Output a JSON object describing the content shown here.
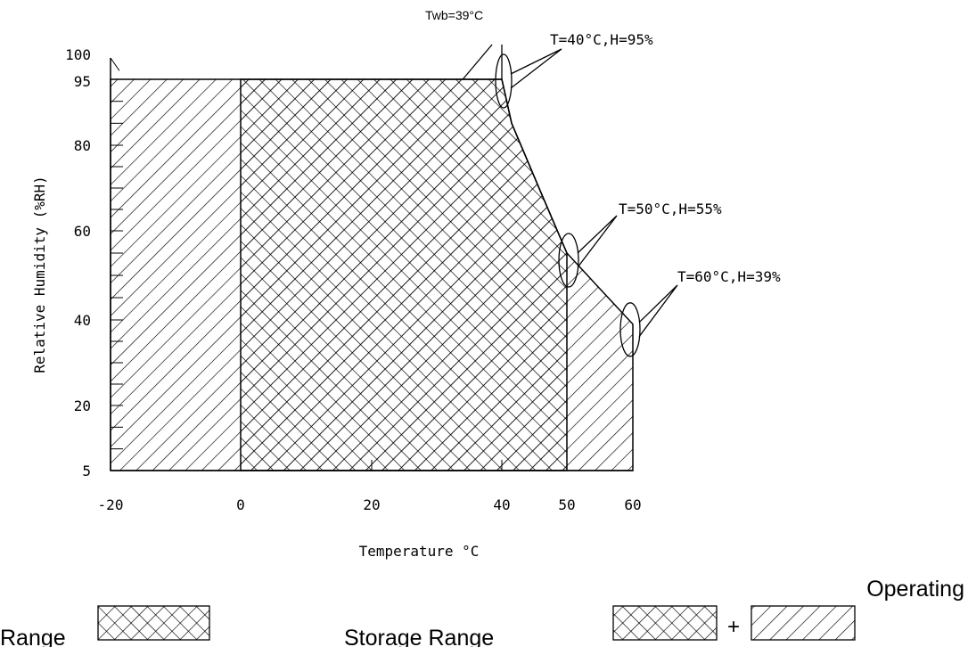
{
  "chart_data": {
    "type": "area",
    "xlabel": "Temperature °C",
    "ylabel": "Relative Humidity (%RH)",
    "xlim": [
      -20,
      60
    ],
    "ylim": [
      5,
      100
    ],
    "x_ticks": [
      "-20",
      "0",
      "20",
      "40",
      "50",
      "60"
    ],
    "x_tick_values": [
      -20,
      0,
      20,
      40,
      50,
      60
    ],
    "y_ticks": [
      "100",
      "95",
      "80",
      "60",
      "40",
      "20",
      "5"
    ],
    "y_tick_values": [
      100,
      95,
      80,
      60,
      40,
      20,
      5
    ],
    "operating_region": {
      "boundary": [
        {
          "t": 0,
          "h": 5
        },
        {
          "t": 0,
          "h": 95
        },
        {
          "t": 40,
          "h": 95
        },
        {
          "t": 41.5,
          "h": 85
        },
        {
          "t": 43.5,
          "h": 78
        },
        {
          "t": 46,
          "h": 69
        },
        {
          "t": 50,
          "h": 55
        },
        {
          "t": 50,
          "h": 5
        }
      ]
    },
    "storage_region": {
      "boundary": [
        {
          "t": -20,
          "h": 5
        },
        {
          "t": -20,
          "h": 95
        },
        {
          "t": 40,
          "h": 95
        },
        {
          "t": 41.5,
          "h": 85
        },
        {
          "t": 43.5,
          "h": 78
        },
        {
          "t": 46,
          "h": 69
        },
        {
          "t": 50,
          "h": 55
        },
        {
          "t": 55,
          "h": 47
        },
        {
          "t": 60,
          "h": 39
        },
        {
          "t": 60,
          "h": 5
        }
      ]
    },
    "twb_line": [
      {
        "t": 34,
        "h": 95
      },
      {
        "t": 38.5,
        "h": 103
      }
    ],
    "annotations": [
      {
        "text": "Twb=39°C",
        "t": 40,
        "h": 103
      },
      {
        "text": "T=40°C,H=95%",
        "t": 40,
        "h": 95
      },
      {
        "text": "T=50°C,H=55%",
        "t": 50,
        "h": 55
      },
      {
        "text": "T=60°C,H=39%",
        "t": 60,
        "h": 39
      }
    ],
    "legend": [
      {
        "label": "Operating Range",
        "pattern": "crosshatch"
      },
      {
        "label": "Storage Range",
        "pattern": "crosshatch + diagonal"
      }
    ],
    "grid": false
  },
  "legend_text": {
    "operating_1": "Operating",
    "operating_2": "Range",
    "storage": "Storage Range",
    "plus": "+"
  }
}
